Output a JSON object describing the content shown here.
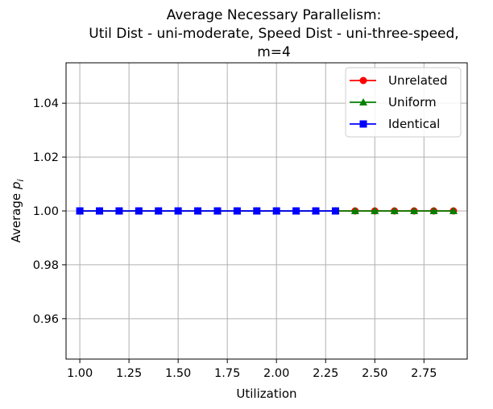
{
  "chart_data": {
    "type": "line",
    "title_lines": [
      "Average Necessary Parallelism:",
      "Util Dist - uni-moderate, Speed Dist - uni-three-speed,",
      "m=4"
    ],
    "xlabel": "Utilization",
    "ylabel": "Average p_i",
    "ylabel_main": "Average ",
    "ylabel_var": "p",
    "ylabel_sub": "i",
    "xlim": [
      0.93,
      2.97
    ],
    "ylim": [
      0.945,
      1.055
    ],
    "xticks": [
      1.0,
      1.25,
      1.5,
      1.75,
      2.0,
      2.25,
      2.5,
      2.75
    ],
    "xtick_labels": [
      "1.00",
      "1.25",
      "1.50",
      "1.75",
      "2.00",
      "2.25",
      "2.50",
      "2.75"
    ],
    "yticks": [
      0.96,
      0.98,
      1.0,
      1.02,
      1.04
    ],
    "ytick_labels": [
      "0.96",
      "0.98",
      "1.00",
      "1.02",
      "1.04"
    ],
    "grid": true,
    "legend_position": "top-right",
    "series": [
      {
        "name": "Unrelated",
        "color": "#ff0000",
        "marker": "circle",
        "x": [
          1.0,
          1.1,
          1.2,
          1.3,
          1.4,
          1.5,
          1.6,
          1.7,
          1.8,
          1.9,
          2.0,
          2.1,
          2.2,
          2.3,
          2.4,
          2.5,
          2.6,
          2.7,
          2.8,
          2.9
        ],
        "y": [
          1,
          1,
          1,
          1,
          1,
          1,
          1,
          1,
          1,
          1,
          1,
          1,
          1,
          1,
          1,
          1,
          1,
          1,
          1,
          1
        ]
      },
      {
        "name": "Uniform",
        "color": "#008000",
        "marker": "triangle",
        "x": [
          1.0,
          1.1,
          1.2,
          1.3,
          1.4,
          1.5,
          1.6,
          1.7,
          1.8,
          1.9,
          2.0,
          2.1,
          2.2,
          2.3,
          2.4,
          2.5,
          2.6,
          2.7,
          2.8,
          2.9
        ],
        "y": [
          1,
          1,
          1,
          1,
          1,
          1,
          1,
          1,
          1,
          1,
          1,
          1,
          1,
          1,
          1,
          1,
          1,
          1,
          1,
          1
        ]
      },
      {
        "name": "Identical",
        "color": "#0000ff",
        "marker": "square",
        "x": [
          1.0,
          1.1,
          1.2,
          1.3,
          1.4,
          1.5,
          1.6,
          1.7,
          1.8,
          1.9,
          2.0,
          2.1,
          2.2,
          2.3
        ],
        "y": [
          1,
          1,
          1,
          1,
          1,
          1,
          1,
          1,
          1,
          1,
          1,
          1,
          1,
          1
        ]
      }
    ]
  }
}
